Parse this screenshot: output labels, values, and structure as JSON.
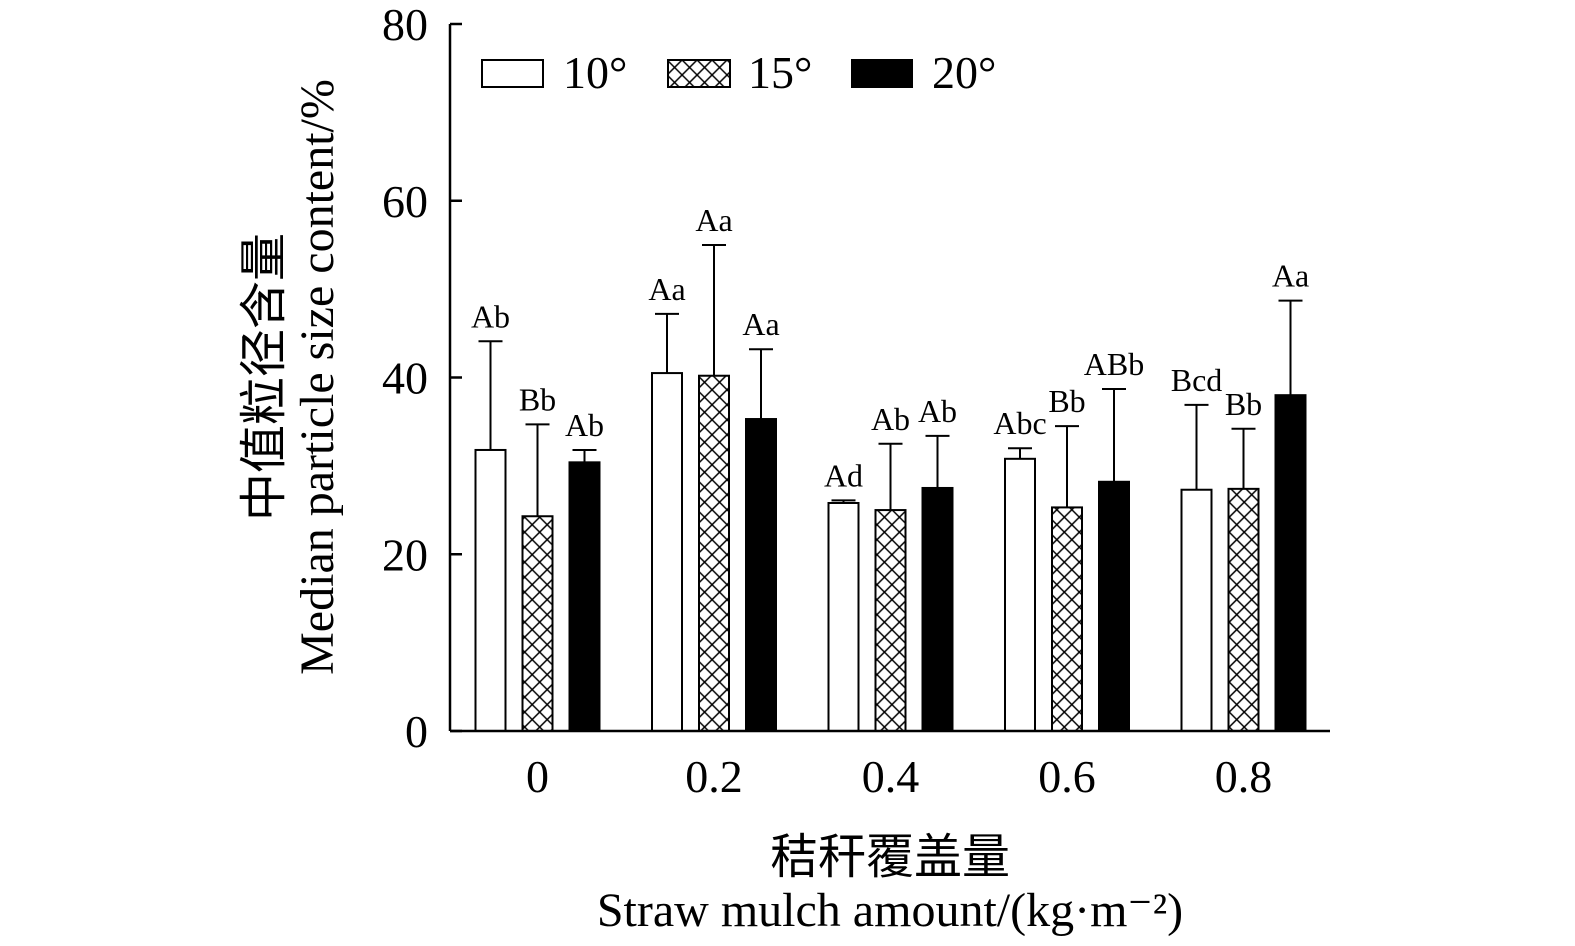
{
  "chart_data": {
    "type": "bar",
    "categories": [
      "0",
      "0.2",
      "0.4",
      "0.6",
      "0.8"
    ],
    "series": [
      {
        "name": "10°",
        "color": "#ffffff",
        "hatched": false,
        "values": [
          31.8,
          40.5,
          25.8,
          30.8,
          27.3
        ],
        "error": [
          12.3,
          6.7,
          0.3,
          1.2,
          9.6
        ],
        "labels": [
          "Ab",
          "Aa",
          "Ad",
          "Abc",
          "Bcd"
        ]
      },
      {
        "name": "15°",
        "color": "#ffffff",
        "hatched": true,
        "values": [
          24.3,
          40.2,
          25.0,
          25.3,
          27.4
        ],
        "error": [
          10.4,
          14.8,
          7.5,
          9.2,
          6.8
        ],
        "labels": [
          "Bb",
          "Aa",
          "Ab",
          "Bb",
          "Bb"
        ]
      },
      {
        "name": "20°",
        "color": "#000000",
        "hatched": false,
        "values": [
          30.4,
          35.3,
          27.5,
          28.2,
          38.0
        ],
        "error": [
          1.4,
          7.9,
          5.9,
          10.5,
          10.7
        ],
        "labels": [
          "Ab",
          "Aa",
          "Ab",
          "ABb",
          "Aa"
        ]
      }
    ],
    "xlabel": [
      "秸秆覆盖量",
      "Straw mulch amount/(kg·m⁻²)"
    ],
    "ylabel": [
      "中值粒径含量",
      "Median particle size content/%"
    ],
    "ylim": [
      0,
      80
    ],
    "yticks": [
      0,
      20,
      40,
      60,
      80
    ],
    "grid": false,
    "legend": "top-left"
  },
  "colors": {
    "ink": "#000000",
    "background": "#ffffff"
  }
}
